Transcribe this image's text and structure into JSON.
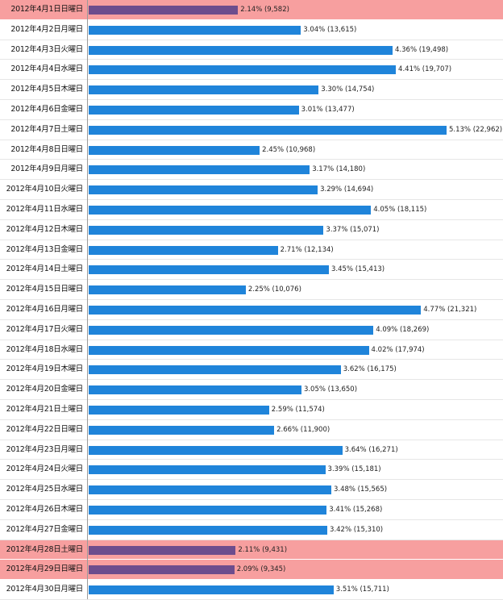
{
  "chart_data": {
    "type": "bar",
    "orientation": "horizontal",
    "title": "",
    "xlabel": "",
    "ylabel": "",
    "categories": [
      "2012年4月1日日曜日",
      "2012年4月2日月曜日",
      "2012年4月3日火曜日",
      "2012年4月4日水曜日",
      "2012年4月5日木曜日",
      "2012年4月6日金曜日",
      "2012年4月7日土曜日",
      "2012年4月8日日曜日",
      "2012年4月9日月曜日",
      "2012年4月10日火曜日",
      "2012年4月11日水曜日",
      "2012年4月12日木曜日",
      "2012年4月13日金曜日",
      "2012年4月14日土曜日",
      "2012年4月15日日曜日",
      "2012年4月16日月曜日",
      "2012年4月17日火曜日",
      "2012年4月18日水曜日",
      "2012年4月19日木曜日",
      "2012年4月20日金曜日",
      "2012年4月21日土曜日",
      "2012年4月22日日曜日",
      "2012年4月23日月曜日",
      "2012年4月24日火曜日",
      "2012年4月25日水曜日",
      "2012年4月26日木曜日",
      "2012年4月27日金曜日",
      "2012年4月28日土曜日",
      "2012年4月29日日曜日",
      "2012年4月30日月曜日"
    ],
    "values": [
      9582,
      13615,
      19498,
      19707,
      14754,
      13477,
      22962,
      10968,
      14180,
      14694,
      18115,
      15071,
      12134,
      15413,
      10076,
      21321,
      18269,
      17974,
      16175,
      13650,
      11574,
      11900,
      16271,
      15181,
      15565,
      15268,
      15310,
      9431,
      9345,
      15711
    ],
    "labels": [
      "2.14% (9,582)",
      "3.04% (13,615)",
      "4.36% (19,498)",
      "4.41% (19,707)",
      "3.30% (14,754)",
      "3.01% (13,477)",
      "5.13% (22,962)",
      "2.45% (10,968)",
      "3.17% (14,180)",
      "3.29% (14,694)",
      "4.05% (18,115)",
      "3.37% (15,071)",
      "2.71% (12,134)",
      "3.45% (15,413)",
      "2.25% (10,076)",
      "4.77% (21,321)",
      "4.09% (18,269)",
      "4.02% (17,974)",
      "3.62% (16,175)",
      "3.05% (13,650)",
      "2.59% (11,574)",
      "2.66% (11,900)",
      "3.64% (16,271)",
      "3.39% (15,181)",
      "3.48% (15,565)",
      "3.41% (15,268)",
      "3.42% (15,310)",
      "2.11% (9,431)",
      "2.09% (9,345)",
      "3.51% (15,711)"
    ],
    "highlighted": [
      true,
      false,
      false,
      false,
      false,
      false,
      false,
      false,
      false,
      false,
      false,
      false,
      false,
      false,
      false,
      false,
      false,
      false,
      false,
      false,
      false,
      false,
      false,
      false,
      false,
      false,
      false,
      true,
      true,
      false
    ],
    "xlim": [
      0,
      22962
    ],
    "colors": {
      "bar": "#1f84da",
      "highlight_bar": "#6d4d8d",
      "highlight_row": "#f79f9f"
    }
  }
}
